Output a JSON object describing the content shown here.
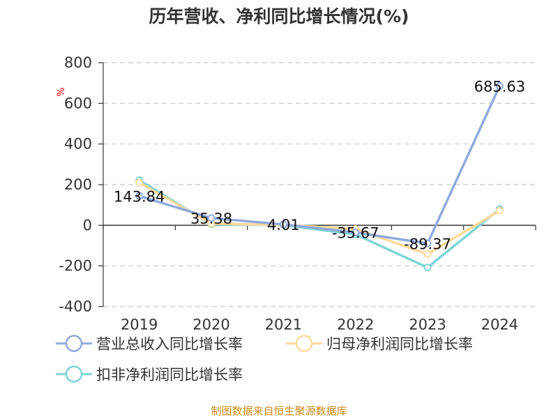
{
  "chart_data": {
    "type": "line",
    "title": "历年营收、净利同比增长情况(%)",
    "unit": "%",
    "categories": [
      "2019",
      "2020",
      "2021",
      "2022",
      "2023",
      "2024"
    ],
    "ylim": [
      -400,
      800
    ],
    "yticks": [
      800,
      600,
      400,
      200,
      0,
      -200,
      -400
    ],
    "grid": true,
    "legend_position": "bottom",
    "series": [
      {
        "name": "营业总收入同比增长率",
        "color": "#8faadc",
        "values": [
          143.84,
          35.38,
          4.01,
          -35.67,
          -89.37,
          685.63
        ],
        "labels": [
          "143.84",
          "35.38",
          "4.01",
          "-35.67",
          "-89.37",
          "685.63"
        ]
      },
      {
        "name": "归母净利润同比增长率",
        "color": "#ffd99a",
        "values": [
          210,
          8,
          2,
          -18,
          -142,
          72
        ]
      },
      {
        "name": "扣非净利润同比增长率",
        "color": "#7fd4d4",
        "values": [
          222,
          5,
          1,
          -45,
          -208,
          80
        ]
      }
    ]
  },
  "source": "制图数据来自恒生聚源数据库"
}
